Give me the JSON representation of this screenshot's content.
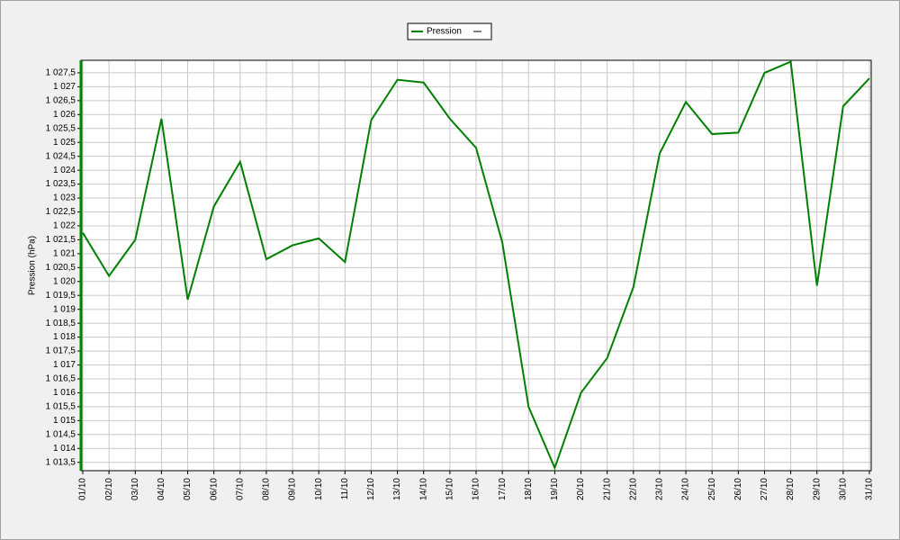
{
  "chart_data": {
    "type": "line",
    "y_label": "Pression (hPa)",
    "categories": [
      "01/10",
      "02/10",
      "03/10",
      "04/10",
      "05/10",
      "06/10",
      "07/10",
      "08/10",
      "09/10",
      "10/10",
      "11/10",
      "12/10",
      "13/10",
      "14/10",
      "15/10",
      "16/10",
      "17/10",
      "18/10",
      "19/10",
      "20/10",
      "21/10",
      "22/10",
      "23/10",
      "24/10",
      "25/10",
      "26/10",
      "27/10",
      "28/10",
      "29/10",
      "30/10",
      "31/10"
    ],
    "series": [
      {
        "name": "Pression",
        "color": "#008000",
        "values": [
          1021.75,
          1020.2,
          1021.5,
          1025.85,
          1019.35,
          1022.7,
          1024.3,
          1020.8,
          1021.3,
          1021.55,
          1020.7,
          1025.8,
          1027.25,
          1027.15,
          1025.85,
          1024.8,
          1021.4,
          1015.5,
          1013.3,
          1016.0,
          1017.25,
          1019.8,
          1024.6,
          1026.45,
          1025.3,
          1025.35,
          1027.5,
          1027.9,
          1019.85,
          1026.3,
          1027.3
        ]
      }
    ],
    "ylim": [
      1013.2,
      1027.95
    ],
    "yticks": [
      {
        "value": 1013.5,
        "label": "1 013,5"
      },
      {
        "value": 1014,
        "label": "1 014"
      },
      {
        "value": 1014.5,
        "label": "1 014,5"
      },
      {
        "value": 1015,
        "label": "1 015"
      },
      {
        "value": 1015.5,
        "label": "1 015,5"
      },
      {
        "value": 1016,
        "label": "1 016"
      },
      {
        "value": 1016.5,
        "label": "1 016,5"
      },
      {
        "value": 1017,
        "label": "1 017"
      },
      {
        "value": 1017.5,
        "label": "1 017,5"
      },
      {
        "value": 1018,
        "label": "1 018"
      },
      {
        "value": 1018.5,
        "label": "1 018,5"
      },
      {
        "value": 1019,
        "label": "1 019"
      },
      {
        "value": 1019.5,
        "label": "1 019,5"
      },
      {
        "value": 1020,
        "label": "1 020"
      },
      {
        "value": 1020.5,
        "label": "1 020,5"
      },
      {
        "value": 1021,
        "label": "1 021"
      },
      {
        "value": 1021.5,
        "label": "1 021,5"
      },
      {
        "value": 1022,
        "label": "1 022"
      },
      {
        "value": 1022.5,
        "label": "1 022,5"
      },
      {
        "value": 1023,
        "label": "1 023"
      },
      {
        "value": 1023.5,
        "label": "1 023,5"
      },
      {
        "value": 1024,
        "label": "1 024"
      },
      {
        "value": 1024.5,
        "label": "1 024,5"
      },
      {
        "value": 1025,
        "label": "1 025"
      },
      {
        "value": 1025.5,
        "label": "1 025,5"
      },
      {
        "value": 1026,
        "label": "1 026"
      },
      {
        "value": 1026.5,
        "label": "1 026,5"
      },
      {
        "value": 1027,
        "label": "1 027"
      },
      {
        "value": 1027.5,
        "label": "1 027,5"
      }
    ],
    "grid": true
  }
}
